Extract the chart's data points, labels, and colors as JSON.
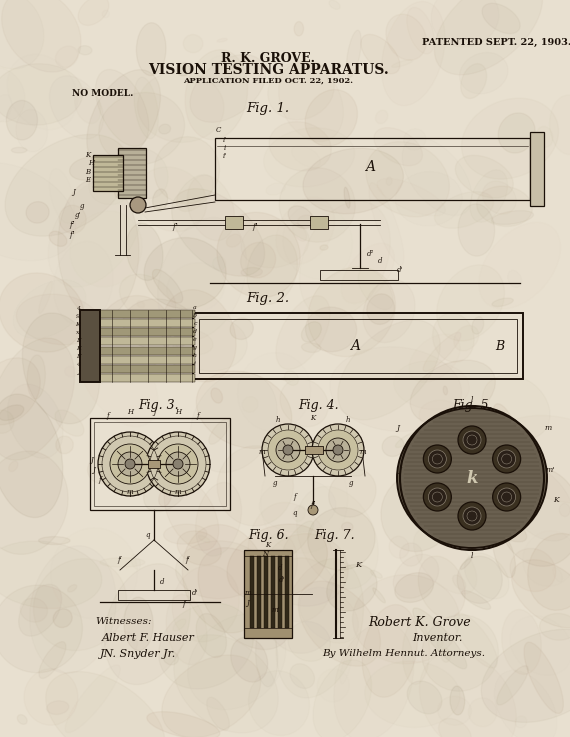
{
  "paper_color": "#e8e0d0",
  "ink_color": "#1a1008",
  "title_line1": "R. K. GROVE.",
  "title_line2": "VISION TESTING APPARATUS.",
  "title_line3": "APPLICATION FILED OCT. 22, 1902.",
  "patent_info": "PATENTED SEPT. 22, 1903.",
  "no_model": "NO MODEL.",
  "fig1_label": "Fig. 1.",
  "fig2_label": "Fig. 2.",
  "fig3_label": "Fig. 3.",
  "fig4_label": "Fig. 4.",
  "fig5_label": "Fig. 5.",
  "fig6_label": "Fig. 6.",
  "fig7_label": "Fig. 7.",
  "witnesses_label": "Witnesses:",
  "witness1": "Albert F. Hauser",
  "witness2": "JN. Snyder Jr.",
  "inventor_label": "Robert K. Grove",
  "inventor_title": "Inventor.",
  "attorney_label": "By Wilhelm Hennut. Attorneys."
}
